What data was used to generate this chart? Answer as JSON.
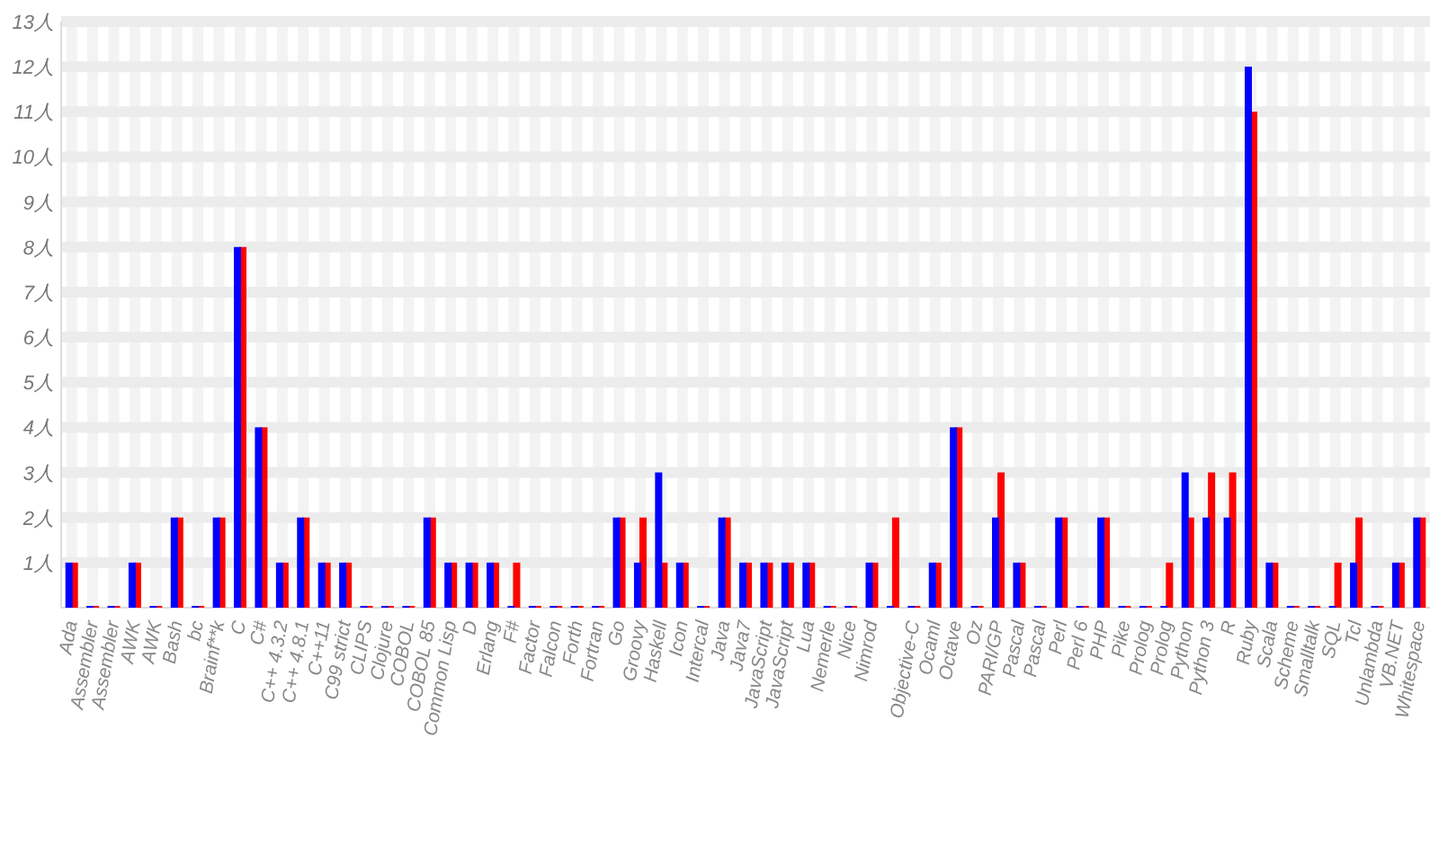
{
  "chart_data": {
    "type": "bar",
    "categories": [
      "Ada",
      "Assembler",
      "Assembler",
      "AWK",
      "AWK",
      "Bash",
      "bc",
      "Brainf**k",
      "C",
      "C#",
      "C++ 4.3.2",
      "C++ 4.8.1",
      "C++11",
      "C99 strict",
      "CLIPS",
      "Clojure",
      "COBOL",
      "COBOL 85",
      "Common Lisp",
      "D",
      "Erlang",
      "F#",
      "Factor",
      "Falcon",
      "Forth",
      "Fortran",
      "Go",
      "Groovy",
      "Haskell",
      "Icon",
      "Intercal",
      "Java",
      "Java7",
      "JavaScript",
      "JavaScript",
      "Lua",
      "Nemerle",
      "Nice",
      "Nimrod",
      null,
      "Objective-C",
      "Ocaml",
      "Octave",
      "Oz",
      "PARI/GP",
      "Pascal",
      "Pascal",
      "Perl",
      "Perl 6",
      "PHP",
      "Pike",
      "Prolog",
      "Prolog",
      "Python",
      "Python 3",
      "R",
      "Ruby",
      "Scala",
      "Scheme",
      "Smalltalk",
      "SQL",
      "Tcl",
      "Unlambda",
      "VB.NET",
      "Whitespace"
    ],
    "series": [
      {
        "color": "#ff0000",
        "values": [
          1,
          0,
          0,
          1,
          0,
          2,
          0,
          2,
          8,
          4,
          1,
          2,
          1,
          1,
          0,
          0,
          0,
          2,
          1,
          1,
          1,
          1,
          0,
          0,
          0,
          0,
          2,
          2,
          1,
          1,
          0,
          2,
          1,
          1,
          1,
          1,
          0,
          0,
          1,
          2,
          0,
          1,
          4,
          0,
          3,
          1,
          0,
          2,
          0,
          2,
          0,
          0,
          1,
          2,
          3,
          3,
          11,
          1,
          0,
          0,
          1,
          2,
          0,
          1,
          2
        ]
      },
      {
        "color": "#0000ff",
        "values": [
          1,
          0,
          0,
          1,
          0,
          2,
          0,
          2,
          8,
          4,
          1,
          2,
          1,
          1,
          0,
          0,
          0,
          2,
          1,
          1,
          1,
          0,
          0,
          0,
          0,
          0,
          2,
          1,
          3,
          1,
          0,
          2,
          1,
          1,
          1,
          1,
          0,
          0,
          1,
          0,
          0,
          1,
          4,
          0,
          2,
          1,
          0,
          2,
          0,
          2,
          0,
          0,
          0,
          3,
          2,
          2,
          12,
          1,
          0,
          0,
          0,
          1,
          0,
          1,
          2
        ]
      }
    ],
    "ylim": [
      0,
      13
    ],
    "yticks": [
      {
        "value": 1,
        "label": "1人"
      },
      {
        "value": 2,
        "label": "2人"
      },
      {
        "value": 3,
        "label": "3人"
      },
      {
        "value": 4,
        "label": "4人"
      },
      {
        "value": 5,
        "label": "5人"
      },
      {
        "value": 6,
        "label": "6人"
      },
      {
        "value": 7,
        "label": "7人"
      },
      {
        "value": 8,
        "label": "8人"
      },
      {
        "value": 9,
        "label": "9人"
      },
      {
        "value": 10,
        "label": "10人"
      },
      {
        "value": 11,
        "label": "11人"
      },
      {
        "value": 12,
        "label": "12人"
      },
      {
        "value": 13,
        "label": "13人"
      }
    ],
    "grid": true
  }
}
